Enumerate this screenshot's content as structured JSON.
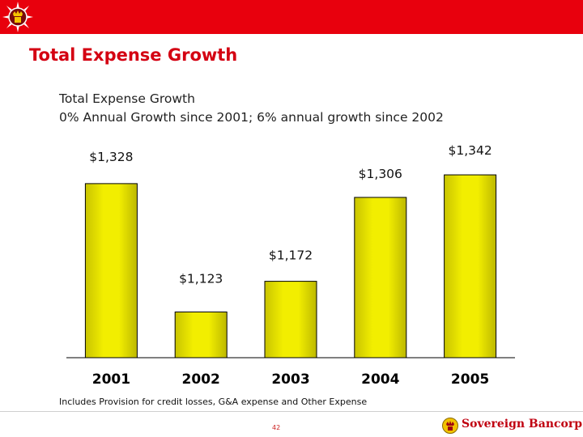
{
  "slide": {
    "title": "Total Expense Growth",
    "page_number": "42",
    "brand_name": "Sovereign Bancorp",
    "footnote": "Includes Provision for credit losses, G&A expense and Other Expense"
  },
  "colors": {
    "header_bar": "#e8000d",
    "title": "#d40012",
    "bar_fill": "#f2ee00",
    "bar_stroke": "#000000",
    "brand": "#c00010"
  },
  "icons": {
    "logo": "seal-emblem-icon",
    "brand_logo": "sovereign-emblem-icon"
  },
  "chart_data": {
    "type": "bar",
    "title": "Total Expense Growth",
    "subtitle": "0% Annual Growth since 2001; 6% annual growth since 2002",
    "categories": [
      "2001",
      "2002",
      "2003",
      "2004",
      "2005"
    ],
    "values": [
      1328,
      1123,
      1172,
      1306,
      1342
    ],
    "data_labels": [
      "$1,328",
      "$1,123",
      "$1,172",
      "$1,306",
      "$1,342"
    ],
    "xlabel": "",
    "ylabel": "",
    "ylim": [
      1050,
      1355
    ],
    "grid": false,
    "legend": "none"
  }
}
